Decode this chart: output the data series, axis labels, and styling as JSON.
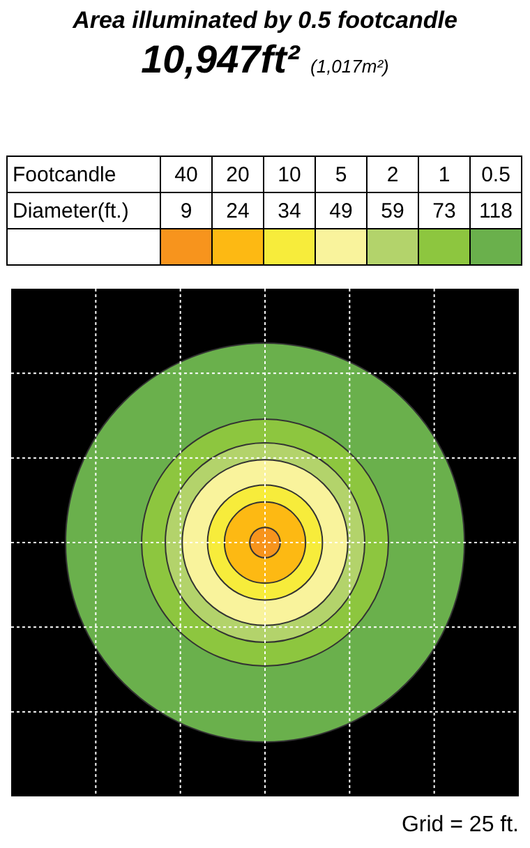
{
  "chart_data": {
    "type": "other",
    "title": "Area illuminated by 0.5 footcandle",
    "subtitle": "10,947ft² (1,017m²)",
    "xlabel": "Footcandle",
    "ylabel": "Diameter(ft.)",
    "categories": [
      "40",
      "20",
      "10",
      "5",
      "2",
      "1",
      "0.5"
    ],
    "values": [
      9,
      24,
      34,
      49,
      59,
      73,
      118
    ],
    "colors": [
      "#f7941d",
      "#fdb913",
      "#f7ec3b",
      "#f9f39c",
      "#b3d36b",
      "#8dc63f",
      "#6ab04c"
    ],
    "data_labels": true,
    "annotations": [
      "Grid = 25 ft."
    ]
  }
}
